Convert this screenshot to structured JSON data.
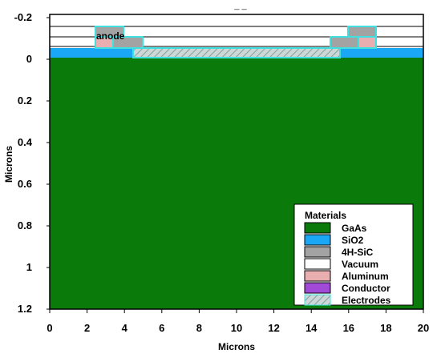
{
  "title": "_ _",
  "x_axis": {
    "label": "Microns",
    "ticks": [
      "0",
      "2",
      "4",
      "6",
      "8",
      "10",
      "12",
      "14",
      "16",
      "18",
      "20"
    ]
  },
  "y_axis": {
    "label": "Microns",
    "ticks": [
      "-0.2",
      "0",
      "0.2",
      "0.4",
      "0.6",
      "0.8",
      "1",
      "1.2"
    ]
  },
  "region_labels": {
    "anode": "anode"
  },
  "legend": {
    "title": "Materials",
    "items": [
      {
        "label": "GaAs",
        "color": "#0a7a0a"
      },
      {
        "label": "SiO2",
        "color": "#1aa7f5"
      },
      {
        "label": "4H-SiC",
        "color": "#a3a3a3"
      },
      {
        "label": "Vacuum",
        "color": "#ffffff"
      },
      {
        "label": "Aluminum",
        "color": "#e8aeb0"
      },
      {
        "label": "Conductor",
        "color": "#a24ad8"
      },
      {
        "label": "Electrodes",
        "color": "hatch-cyan"
      }
    ]
  },
  "colors": {
    "gaas": "#0a7a0a",
    "sio2": "#1aa7f5",
    "sic": "#a3a3a3",
    "vacuum": "#ffffff",
    "aluminum": "#e8aeb0",
    "conductor": "#a24ad8",
    "electrode": "#40e0e0"
  }
}
